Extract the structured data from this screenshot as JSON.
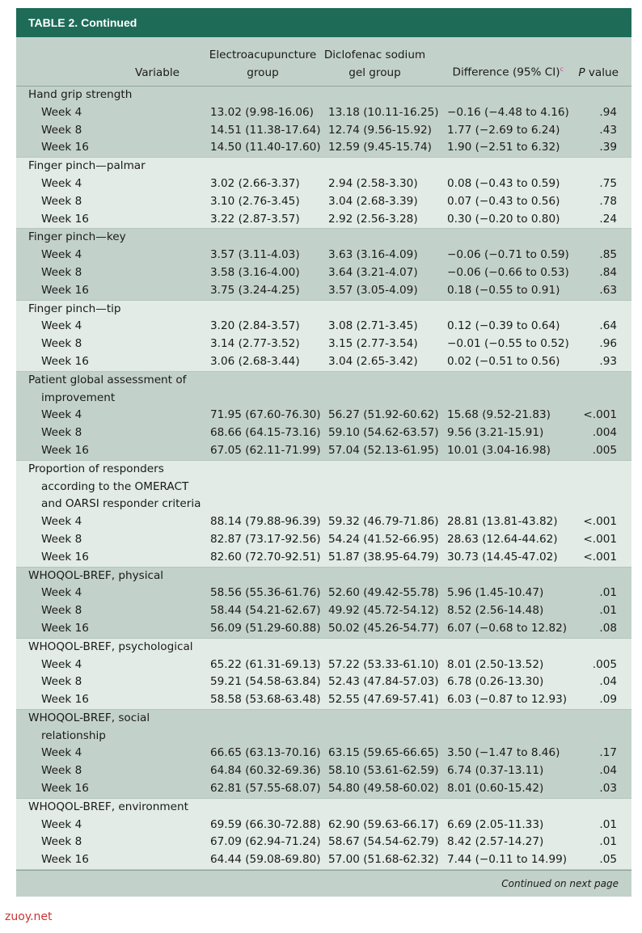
{
  "table_title": "TABLE 2. Continued",
  "headers": {
    "variable": "Variable",
    "electro": [
      "Electroacupuncture",
      "group"
    ],
    "diclofenac": [
      "Diclofenac sodium",
      "gel group"
    ],
    "difference": "Difference (95% CI)",
    "difference_sup": "c",
    "pvalue_italic": "P",
    "pvalue_rest": " value"
  },
  "groups": [
    {
      "label": [
        "Hand grip strength"
      ],
      "rows": [
        {
          "week": "Week 4",
          "ea": "13.02 (9.98-16.06)",
          "dg": "13.18 (10.11-16.25)",
          "diff": "−0.16 (−4.48 to 4.16)",
          "p": ".94"
        },
        {
          "week": "Week 8",
          "ea": "14.51 (11.38-17.64)",
          "dg": "12.74 (9.56-15.92)",
          "diff": "1.77 (−2.69 to 6.24)",
          "p": ".43"
        },
        {
          "week": "Week 16",
          "ea": "14.50 (11.40-17.60)",
          "dg": "12.59 (9.45-15.74)",
          "diff": "1.90 (−2.51 to 6.32)",
          "p": ".39"
        }
      ]
    },
    {
      "label": [
        "Finger pinch—palmar"
      ],
      "rows": [
        {
          "week": "Week 4",
          "ea": "3.02 (2.66-3.37)",
          "dg": "2.94 (2.58-3.30)",
          "diff": "0.08 (−0.43 to 0.59)",
          "p": ".75"
        },
        {
          "week": "Week 8",
          "ea": "3.10 (2.76-3.45)",
          "dg": "3.04 (2.68-3.39)",
          "diff": "0.07 (−0.43 to 0.56)",
          "p": ".78"
        },
        {
          "week": "Week 16",
          "ea": "3.22 (2.87-3.57)",
          "dg": "2.92 (2.56-3.28)",
          "diff": "0.30 (−0.20 to 0.80)",
          "p": ".24"
        }
      ]
    },
    {
      "label": [
        "Finger pinch—key"
      ],
      "rows": [
        {
          "week": "Week 4",
          "ea": "3.57 (3.11-4.03)",
          "dg": "3.63 (3.16-4.09)",
          "diff": "−0.06 (−0.71 to 0.59)",
          "p": ".85"
        },
        {
          "week": "Week 8",
          "ea": "3.58 (3.16-4.00)",
          "dg": "3.64 (3.21-4.07)",
          "diff": "−0.06 (−0.66 to 0.53)",
          "p": ".84"
        },
        {
          "week": "Week 16",
          "ea": "3.75 (3.24-4.25)",
          "dg": "3.57 (3.05-4.09)",
          "diff": "0.18 (−0.55 to 0.91)",
          "p": ".63"
        }
      ]
    },
    {
      "label": [
        "Finger pinch—tip"
      ],
      "rows": [
        {
          "week": "Week 4",
          "ea": "3.20 (2.84-3.57)",
          "dg": "3.08 (2.71-3.45)",
          "diff": "0.12 (−0.39 to 0.64)",
          "p": ".64"
        },
        {
          "week": "Week 8",
          "ea": "3.14 (2.77-3.52)",
          "dg": "3.15 (2.77-3.54)",
          "diff": "−0.01 (−0.55 to 0.52)",
          "p": ".96"
        },
        {
          "week": "Week 16",
          "ea": "3.06 (2.68-3.44)",
          "dg": "3.04 (2.65-3.42)",
          "diff": "0.02 (−0.51 to 0.56)",
          "p": ".93"
        }
      ]
    },
    {
      "label": [
        "Patient global assessment of",
        "improvement"
      ],
      "rows": [
        {
          "week": "Week 4",
          "ea": "71.95 (67.60-76.30)",
          "dg": "56.27 (51.92-60.62)",
          "diff": "15.68 (9.52-21.83)",
          "p": "<.001"
        },
        {
          "week": "Week 8",
          "ea": "68.66 (64.15-73.16)",
          "dg": "59.10 (54.62-63.57)",
          "diff": "9.56 (3.21-15.91)",
          "p": ".004"
        },
        {
          "week": "Week 16",
          "ea": "67.05 (62.11-71.99)",
          "dg": "57.04 (52.13-61.95)",
          "diff": "10.01 (3.04-16.98)",
          "p": ".005"
        }
      ]
    },
    {
      "label": [
        "Proportion of responders",
        "according to the OMERACT",
        "and OARSI responder criteria"
      ],
      "rows": [
        {
          "week": "Week 4",
          "ea": "88.14 (79.88-96.39)",
          "dg": "59.32 (46.79-71.86)",
          "diff": "28.81 (13.81-43.82)",
          "p": "<.001"
        },
        {
          "week": "Week 8",
          "ea": "82.87 (73.17-92.56)",
          "dg": "54.24 (41.52-66.95)",
          "diff": "28.63 (12.64-44.62)",
          "p": "<.001"
        },
        {
          "week": "Week 16",
          "ea": "82.60 (72.70-92.51)",
          "dg": "51.87 (38.95-64.79)",
          "diff": "30.73 (14.45-47.02)",
          "p": "<.001"
        }
      ]
    },
    {
      "label": [
        "WHOQOL-BREF, physical"
      ],
      "rows": [
        {
          "week": "Week 4",
          "ea": "58.56 (55.36-61.76)",
          "dg": "52.60 (49.42-55.78)",
          "diff": "5.96 (1.45-10.47)",
          "p": ".01"
        },
        {
          "week": "Week 8",
          "ea": "58.44 (54.21-62.67)",
          "dg": "49.92 (45.72-54.12)",
          "diff": "8.52 (2.56-14.48)",
          "p": ".01"
        },
        {
          "week": "Week 16",
          "ea": "56.09 (51.29-60.88)",
          "dg": "50.02 (45.26-54.77)",
          "diff": "6.07 (−0.68 to 12.82)",
          "p": ".08"
        }
      ]
    },
    {
      "label": [
        "WHOQOL-BREF, psychological"
      ],
      "rows": [
        {
          "week": "Week 4",
          "ea": "65.22 (61.31-69.13)",
          "dg": "57.22 (53.33-61.10)",
          "diff": "8.01 (2.50-13.52)",
          "p": ".005"
        },
        {
          "week": "Week 8",
          "ea": "59.21 (54.58-63.84)",
          "dg": "52.43 (47.84-57.03)",
          "diff": "6.78 (0.26-13.30)",
          "p": ".04"
        },
        {
          "week": "Week 16",
          "ea": "58.58 (53.68-63.48)",
          "dg": "52.55 (47.69-57.41)",
          "diff": "6.03 (−0.87 to 12.93)",
          "p": ".09"
        }
      ]
    },
    {
      "label": [
        "WHOQOL-BREF, social",
        "relationship"
      ],
      "rows": [
        {
          "week": "Week 4",
          "ea": "66.65 (63.13-70.16)",
          "dg": "63.15 (59.65-66.65)",
          "diff": "3.50 (−1.47 to 8.46)",
          "p": ".17"
        },
        {
          "week": "Week 8",
          "ea": "64.84 (60.32-69.36)",
          "dg": "58.10 (53.61-62.59)",
          "diff": "6.74 (0.37-13.11)",
          "p": ".04"
        },
        {
          "week": "Week 16",
          "ea": "62.81 (57.55-68.07)",
          "dg": "54.80 (49.58-60.02)",
          "diff": "8.01 (0.60-15.42)",
          "p": ".03"
        }
      ]
    },
    {
      "label": [
        "WHOQOL-BREF, environment"
      ],
      "rows": [
        {
          "week": "Week 4",
          "ea": "69.59 (66.30-72.88)",
          "dg": "62.90 (59.63-66.17)",
          "diff": "6.69 (2.05-11.33)",
          "p": ".01"
        },
        {
          "week": "Week 8",
          "ea": "67.09 (62.94-71.24)",
          "dg": "58.67 (54.54-62.79)",
          "diff": "8.42 (2.57-14.27)",
          "p": ".01"
        },
        {
          "week": "Week 16",
          "ea": "64.44 (59.08-69.80)",
          "dg": "57.00 (51.68-62.32)",
          "diff": "7.44 (−0.11 to 14.99)",
          "p": ".05"
        }
      ]
    }
  ],
  "footer_note": "Continued on next page",
  "watermark": "zuoy.net"
}
